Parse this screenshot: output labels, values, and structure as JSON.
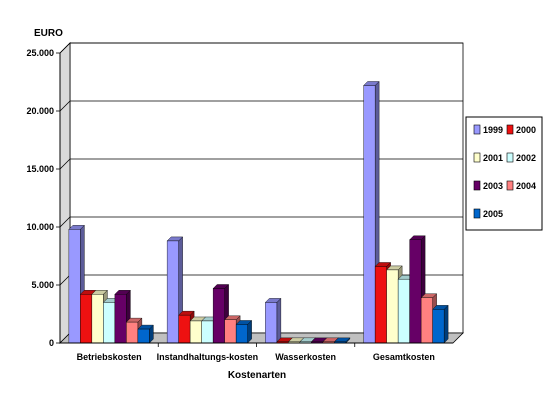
{
  "chart_data": {
    "type": "bar",
    "ylabel": "EURO",
    "xlabel": "Kostenarten",
    "ylim": [
      0,
      25000
    ],
    "yticks": [
      0,
      5000,
      10000,
      15000,
      20000,
      25000
    ],
    "ytick_labels": [
      "0",
      "5.000",
      "10.000",
      "15.000",
      "20.000",
      "25.000"
    ],
    "grid": true,
    "legend_position": "right",
    "categories": [
      "Betriebskosten",
      "Instandhaltungs-kosten",
      "Wasserkosten",
      "Gesamtkosten"
    ],
    "series": [
      {
        "name": "1999",
        "color": "#9999ff",
        "values": [
          9800,
          8800,
          3500,
          22200
        ]
      },
      {
        "name": "2000",
        "color": "#ee1111",
        "values": [
          4200,
          2400,
          100,
          6600
        ]
      },
      {
        "name": "2001",
        "color": "#ffffcc",
        "values": [
          4200,
          1900,
          100,
          6300
        ]
      },
      {
        "name": "2002",
        "color": "#ccffff",
        "values": [
          3500,
          1900,
          100,
          5500
        ]
      },
      {
        "name": "2003",
        "color": "#660066",
        "values": [
          4200,
          4700,
          100,
          8900
        ]
      },
      {
        "name": "2004",
        "color": "#ff8080",
        "values": [
          1800,
          2000,
          100,
          3900
        ]
      },
      {
        "name": "2005",
        "color": "#0066cc",
        "values": [
          1200,
          1600,
          100,
          2900
        ]
      }
    ]
  }
}
